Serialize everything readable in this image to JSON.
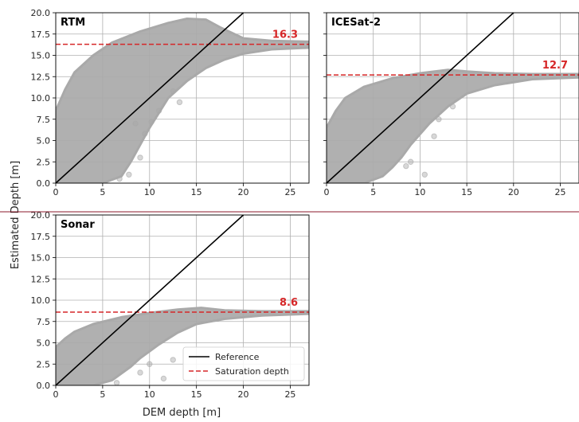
{
  "figure": {
    "xlabel": "DEM depth [m]",
    "ylabel": "Estimated Depth [m]"
  },
  "legend": {
    "reference": "Reference",
    "saturation": "Saturation depth",
    "placement": "lower-right of Sonar panel"
  },
  "colors": {
    "scatter": "#a9a9a9",
    "reference_line": "#000000",
    "saturation_line": "#d62728",
    "grid": "#b0b0b0"
  },
  "chart_data": [
    {
      "type": "scatter",
      "title": "RTM",
      "xlim": [
        0,
        27
      ],
      "ylim": [
        0,
        20
      ],
      "xticks": [
        "0",
        "5",
        "10",
        "15",
        "20",
        "25"
      ],
      "yticks": [
        "0.0",
        "2.5",
        "5.0",
        "7.5",
        "10.0",
        "12.5",
        "15.0",
        "17.5",
        "20.0"
      ],
      "xtick_values": [
        0,
        5,
        10,
        15,
        20,
        25
      ],
      "ytick_values": [
        0,
        2.5,
        5,
        7.5,
        10,
        12.5,
        15,
        17.5,
        20
      ],
      "saturation_depth": 16.3,
      "saturation_label": "16.3",
      "reference_line": {
        "x": [
          0,
          20
        ],
        "y": [
          0,
          20
        ]
      },
      "envelope_upper": [
        [
          0,
          8.5
        ],
        [
          1,
          11
        ],
        [
          2,
          13
        ],
        [
          4,
          15
        ],
        [
          6,
          16.5
        ],
        [
          9,
          17.8
        ],
        [
          12,
          18.8
        ],
        [
          14,
          19.3
        ],
        [
          16,
          19.2
        ],
        [
          17.5,
          18.3
        ],
        [
          20,
          17.0
        ],
        [
          23,
          16.7
        ],
        [
          27,
          16.6
        ]
      ],
      "envelope_lower": [
        [
          27,
          15.9
        ],
        [
          23,
          15.7
        ],
        [
          20,
          15.2
        ],
        [
          18,
          14.5
        ],
        [
          16,
          13.5
        ],
        [
          14,
          12.0
        ],
        [
          12,
          10.0
        ],
        [
          10,
          6.5
        ],
        [
          9,
          4.5
        ],
        [
          8,
          2.5
        ],
        [
          7,
          0.8
        ],
        [
          5,
          0.0
        ],
        [
          0,
          0.0
        ]
      ],
      "outliers": [
        [
          8.5,
          7.0
        ],
        [
          9.5,
          5.8
        ],
        [
          10.2,
          7.2
        ],
        [
          11,
          8.5
        ],
        [
          12.5,
          10.8
        ],
        [
          13.2,
          9.5
        ],
        [
          9.0,
          3.0
        ],
        [
          7.8,
          1.0
        ],
        [
          6.8,
          0.5
        ]
      ]
    },
    {
      "type": "scatter",
      "title": "ICESat-2",
      "xlim": [
        0,
        27
      ],
      "ylim": [
        0,
        20
      ],
      "xticks": [
        "0",
        "5",
        "10",
        "15",
        "20",
        "25"
      ],
      "yticks": [],
      "xtick_values": [
        0,
        5,
        10,
        15,
        20,
        25
      ],
      "ytick_values": [
        0,
        2.5,
        5,
        7.5,
        10,
        12.5,
        15,
        17.5,
        20
      ],
      "saturation_depth": 12.7,
      "saturation_label": "12.7",
      "reference_line": {
        "x": [
          0,
          20
        ],
        "y": [
          0,
          20
        ]
      },
      "envelope_upper": [
        [
          0,
          6.5
        ],
        [
          1,
          8.5
        ],
        [
          2,
          10.0
        ],
        [
          4,
          11.3
        ],
        [
          7,
          12.3
        ],
        [
          10,
          12.9
        ],
        [
          13,
          13.3
        ],
        [
          15,
          13.1
        ],
        [
          18,
          12.9
        ],
        [
          22,
          12.8
        ],
        [
          27,
          12.8
        ]
      ],
      "envelope_lower": [
        [
          27,
          12.4
        ],
        [
          22,
          12.2
        ],
        [
          18,
          11.5
        ],
        [
          15,
          10.5
        ],
        [
          13,
          9.0
        ],
        [
          11,
          7.0
        ],
        [
          9,
          4.5
        ],
        [
          8,
          3.0
        ],
        [
          7,
          1.8
        ],
        [
          6,
          0.8
        ],
        [
          4,
          0.0
        ],
        [
          0,
          0.0
        ]
      ],
      "outliers": [
        [
          8.5,
          2.0
        ],
        [
          10.5,
          1.0
        ],
        [
          9.0,
          2.5
        ],
        [
          12.0,
          7.5
        ],
        [
          13.5,
          9.0
        ],
        [
          11.5,
          5.5
        ]
      ]
    },
    {
      "type": "scatter",
      "title": "Sonar",
      "xlim": [
        0,
        27
      ],
      "ylim": [
        0,
        20
      ],
      "xticks": [
        "0",
        "5",
        "10",
        "15",
        "20",
        "25"
      ],
      "yticks": [
        "0.0",
        "2.5",
        "5.0",
        "7.5",
        "10.0",
        "12.5",
        "15.0",
        "17.5",
        "20.0"
      ],
      "xtick_values": [
        0,
        5,
        10,
        15,
        20,
        25
      ],
      "ytick_values": [
        0,
        2.5,
        5,
        7.5,
        10,
        12.5,
        15,
        17.5,
        20
      ],
      "saturation_depth": 8.6,
      "saturation_label": "8.6",
      "reference_line": {
        "x": [
          0,
          20
        ],
        "y": [
          0,
          20
        ]
      },
      "envelope_upper": [
        [
          0,
          4.5
        ],
        [
          1,
          5.5
        ],
        [
          2,
          6.3
        ],
        [
          4,
          7.2
        ],
        [
          7,
          8.0
        ],
        [
          10,
          8.5
        ],
        [
          13,
          8.9
        ],
        [
          15.5,
          9.1
        ],
        [
          18,
          8.8
        ],
        [
          22,
          8.7
        ],
        [
          27,
          8.7
        ]
      ],
      "envelope_lower": [
        [
          27,
          8.4
        ],
        [
          22,
          8.2
        ],
        [
          18,
          7.8
        ],
        [
          15,
          7.2
        ],
        [
          13,
          6.2
        ],
        [
          11,
          4.8
        ],
        [
          9,
          3.2
        ],
        [
          8,
          2.2
        ],
        [
          7,
          1.4
        ],
        [
          6,
          0.6
        ],
        [
          4,
          0.0
        ],
        [
          0,
          0.0
        ]
      ],
      "outliers": [
        [
          9.0,
          1.5
        ],
        [
          10.0,
          2.5
        ],
        [
          11.5,
          0.8
        ],
        [
          6.5,
          0.3
        ],
        [
          12.5,
          3.0
        ]
      ]
    }
  ]
}
